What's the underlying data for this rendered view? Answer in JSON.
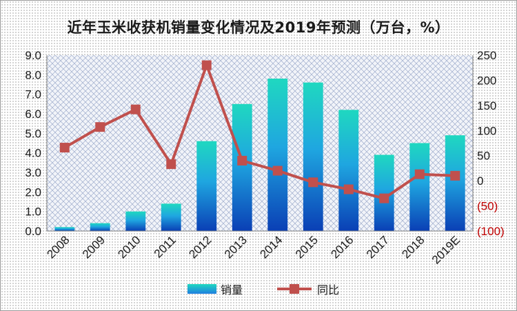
{
  "chart_data": {
    "type": "bar+line",
    "title": "近年玉米收获机销量变化情况及2019年预测（万台，%）",
    "categories": [
      "2008",
      "2009",
      "2010",
      "2011",
      "2012",
      "2013",
      "2014",
      "2015",
      "2016",
      "2017",
      "2018",
      "2019E"
    ],
    "series": [
      {
        "name": "销量",
        "type": "bar",
        "axis": "left",
        "values": [
          0.2,
          0.4,
          1.0,
          1.4,
          4.6,
          6.5,
          7.8,
          7.6,
          6.2,
          3.9,
          4.5,
          4.9
        ]
      },
      {
        "name": "同比",
        "type": "line",
        "axis": "right",
        "values": [
          66,
          107,
          142,
          33,
          230,
          40,
          20,
          -3,
          -17,
          -35,
          13,
          10
        ]
      }
    ],
    "ylim_left": [
      0,
      9
    ],
    "yticks_left": [
      "0.0",
      "1.0",
      "2.0",
      "3.0",
      "4.0",
      "5.0",
      "6.0",
      "7.0",
      "8.0",
      "9.0"
    ],
    "ylim_right": [
      -100,
      250
    ],
    "yticks_right": [
      "(100)",
      "(50)",
      "0",
      "50",
      "100",
      "150",
      "200",
      "250"
    ],
    "legend_position": "bottom",
    "colors": {
      "bar_top": "#1fd8c0",
      "bar_bottom": "#0a3fb5",
      "line": "#c0504d",
      "negative_tick": "#c00000"
    }
  }
}
